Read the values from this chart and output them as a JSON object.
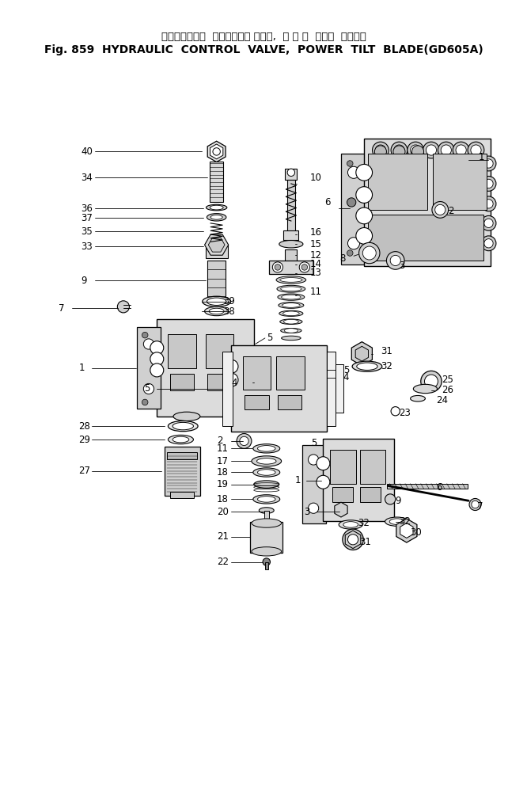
{
  "title_japanese": "ハイドロリック  コントロール バルブ,  パ ワ ー  チルト  ブレード",
  "title_english": "Fig. 859  HYDRAULIC  CONTROL  VALVE,  POWER  TILT  BLADE(GD605A)",
  "bg_color": "#ffffff",
  "line_color": "#000000",
  "title_fontsize_jp": 9.5,
  "title_fontsize_en": 10,
  "label_fontsize": 8.5
}
